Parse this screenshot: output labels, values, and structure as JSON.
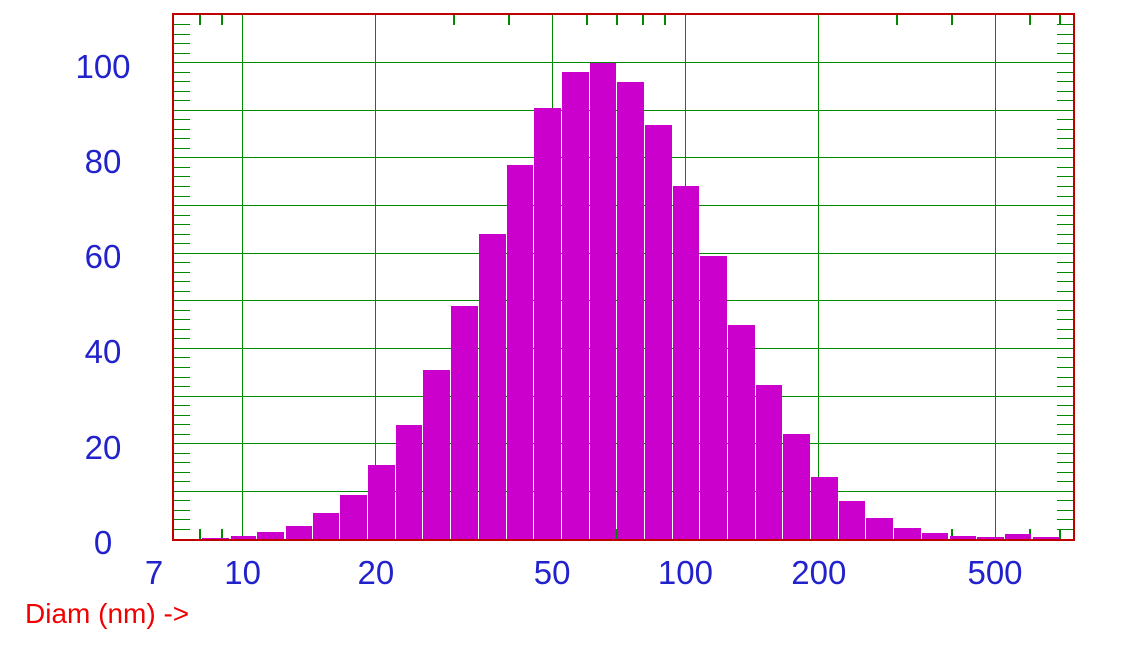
{
  "axis_title": "Diam (nm) ->",
  "colors": {
    "background": "#ffffff",
    "bar_fill": "#cc00cc",
    "grid_green": "#008a00",
    "frame_red": "#c00000",
    "tick_label_blue": "#2222cc",
    "axis_title_red": "#f00000"
  },
  "chart_data": {
    "type": "bar",
    "title": "",
    "xlabel": "Diam (nm) ->",
    "ylabel": "",
    "x_scale": "log",
    "x_domain": [
      7,
      750
    ],
    "y_domain": [
      0,
      110
    ],
    "grid": true,
    "legend": false,
    "x_tick_labels": [
      {
        "label": "7",
        "value": 7
      },
      {
        "label": "10",
        "value": 10
      },
      {
        "label": "20",
        "value": 20
      },
      {
        "label": "50",
        "value": 50
      },
      {
        "label": "100",
        "value": 100
      },
      {
        "label": "200",
        "value": 200
      },
      {
        "label": "500",
        "value": 500
      }
    ],
    "x_major_gridlines": [
      10,
      20,
      50,
      100,
      200,
      500
    ],
    "x_minor_ticks": [
      8,
      9,
      30,
      40,
      60,
      70,
      80,
      90,
      300,
      400,
      600,
      700
    ],
    "y_tick_labels": [
      {
        "label": "0",
        "value": 0
      },
      {
        "label": "20",
        "value": 20
      },
      {
        "label": "40",
        "value": 40
      },
      {
        "label": "60",
        "value": 60
      },
      {
        "label": "80",
        "value": 80
      },
      {
        "label": "100",
        "value": 100
      }
    ],
    "y_major_gridlines": [
      10,
      20,
      30,
      40,
      50,
      60,
      70,
      80,
      90,
      100
    ],
    "y_minor_tick_step": 2,
    "bin_edges_nm": [
      8.1,
      9.4,
      10.8,
      12.5,
      14.4,
      16.6,
      19.2,
      22.2,
      25.6,
      29.6,
      34.2,
      39.5,
      45.6,
      52.6,
      60.8,
      70.2,
      81.0,
      93.6,
      108.1,
      124.8,
      144.1,
      166.4,
      192.2,
      221.9,
      256.3,
      296.0,
      341.8,
      394.7,
      455.8,
      526.4,
      607.9,
      702.0
    ],
    "values_pct": [
      0.3,
      0.7,
      1.5,
      2.7,
      5.4,
      9.2,
      15.6,
      24.0,
      35.5,
      49.0,
      64.0,
      78.5,
      90.5,
      98.0,
      100.0,
      96.0,
      87.0,
      74.0,
      59.5,
      45.0,
      32.4,
      22.0,
      13.0,
      8.0,
      4.5,
      2.4,
      1.3,
      0.7,
      0.4,
      1.0,
      0.5
    ]
  }
}
